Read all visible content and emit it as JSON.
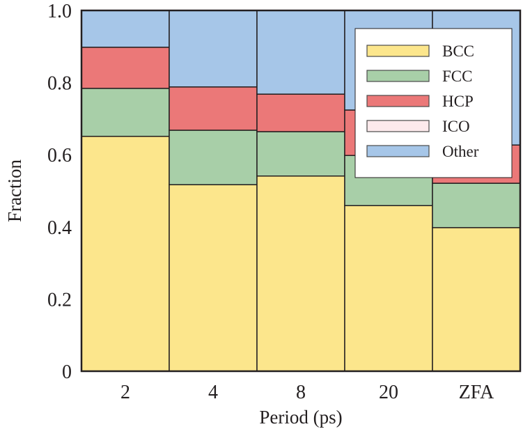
{
  "chart_data": {
    "type": "bar",
    "stacked": true,
    "title": "",
    "xlabel": "Period (ps)",
    "ylabel": "Fraction",
    "ylim": [
      0,
      1.0
    ],
    "yticks": [
      0,
      0.2,
      0.4,
      0.6,
      0.8,
      1.0
    ],
    "ytick_labels": [
      "0",
      "0.2",
      "0.4",
      "0.6",
      "0.8",
      "1.0"
    ],
    "categories": [
      "2",
      "4",
      "8",
      "20",
      "ZFA"
    ],
    "grid": false,
    "legend_position": "top-right",
    "series": [
      {
        "name": "BCC",
        "color": "#FCE68C",
        "values": [
          0.651,
          0.517,
          0.541,
          0.459,
          0.398
        ]
      },
      {
        "name": "FCC",
        "color": "#A8CFA8",
        "values": [
          0.133,
          0.151,
          0.123,
          0.139,
          0.123
        ]
      },
      {
        "name": "HCP",
        "color": "#EB7878",
        "values": [
          0.114,
          0.12,
          0.104,
          0.126,
          0.106
        ]
      },
      {
        "name": "ICO",
        "color": "#FDEAEC",
        "values": [
          0.0,
          0.0,
          0.0,
          0.0,
          0.0
        ]
      },
      {
        "name": "Other",
        "color": "#A6C6E8",
        "values": [
          0.102,
          0.212,
          0.232,
          0.276,
          0.373
        ]
      }
    ]
  }
}
